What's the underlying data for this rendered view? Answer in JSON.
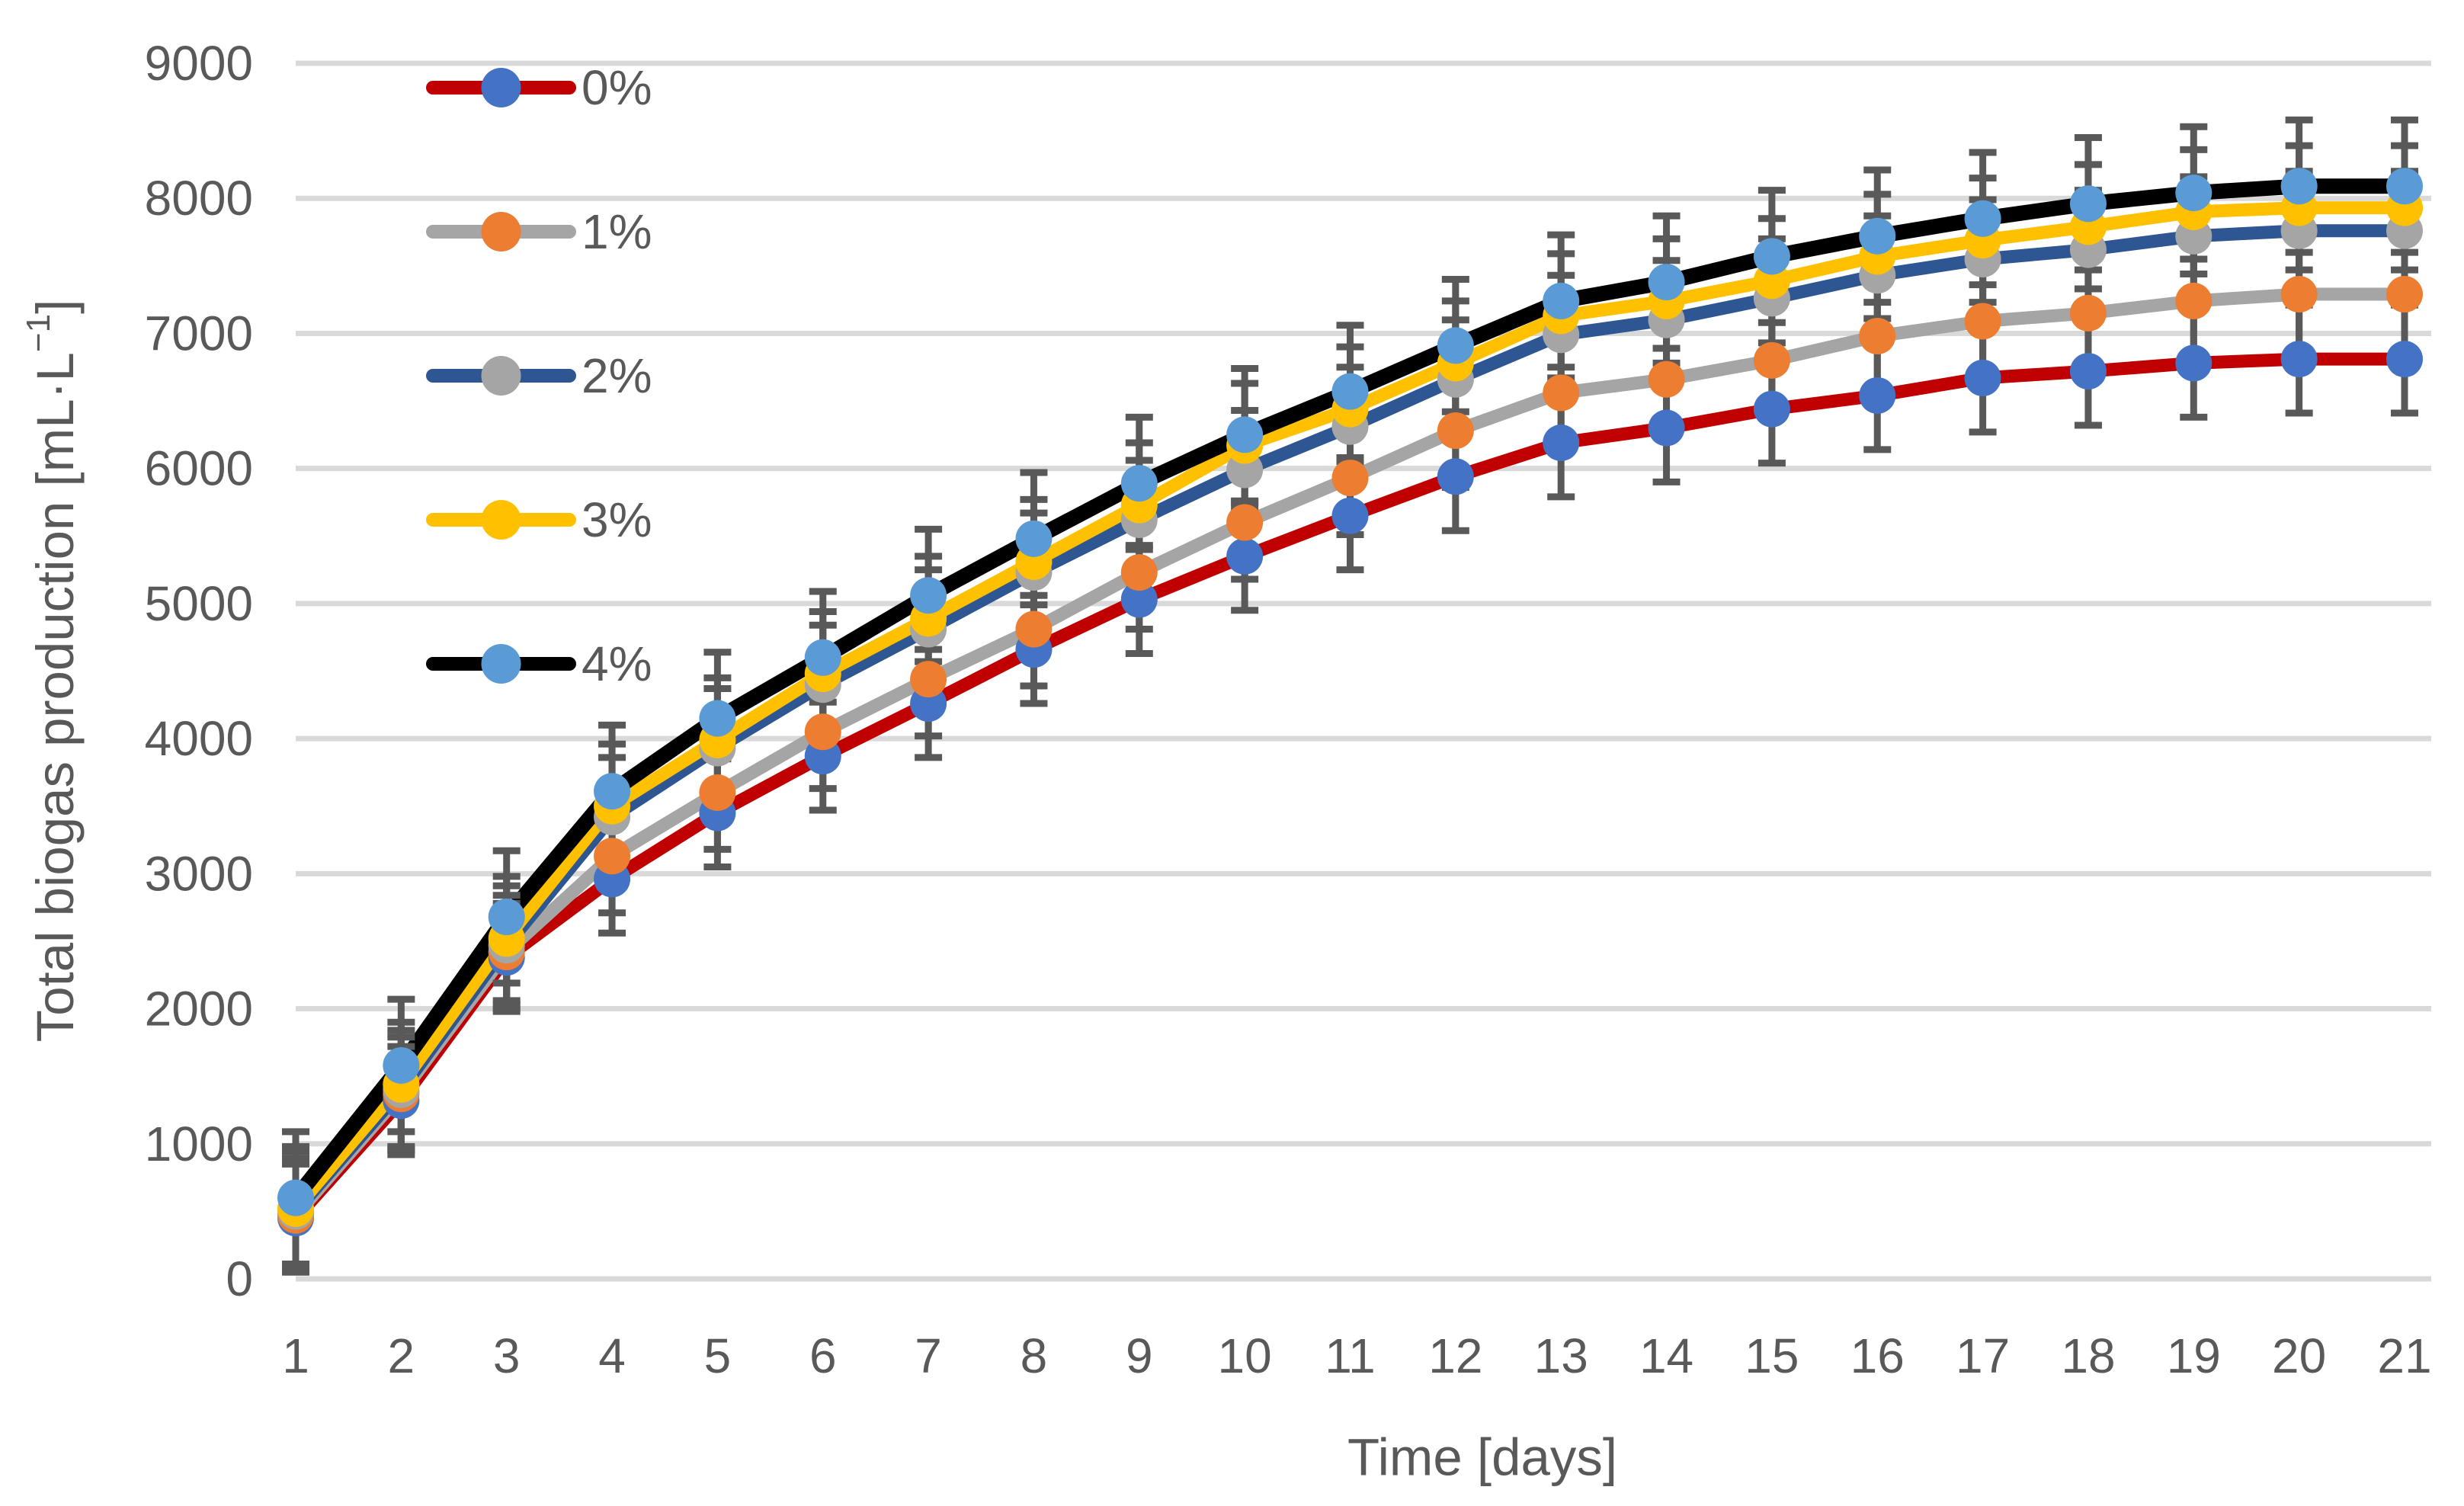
{
  "chart_data": {
    "type": "line",
    "title": "",
    "xlabel": "Time [days]",
    "ylabel": "Total biogas production [mL·L⁻¹]",
    "ylabel_parts": {
      "base": "Total biogas production [mL·L",
      "sup": "−1",
      "end": "]"
    },
    "x": [
      1,
      2,
      3,
      4,
      5,
      6,
      7,
      8,
      9,
      10,
      11,
      12,
      13,
      14,
      15,
      16,
      17,
      18,
      19,
      20,
      21
    ],
    "xlim": [
      1,
      21
    ],
    "ylim": [
      0,
      9000
    ],
    "ytick_step": 1000,
    "yticks": [
      0,
      1000,
      2000,
      3000,
      4000,
      5000,
      6000,
      7000,
      8000,
      9000
    ],
    "grid": "horizontal",
    "legend_position": "inside-top-left",
    "background": "#FFFFFF",
    "grid_color": "#D9D9D9",
    "text_color": "#595959",
    "error_bar_color": "#595959",
    "series": [
      {
        "name": "0%",
        "line_color": "#C00000",
        "marker_color": "#4472C4",
        "error": 400,
        "values": [
          450,
          1320,
          2380,
          2960,
          3450,
          3870,
          4260,
          4660,
          5030,
          5350,
          5650,
          5940,
          6190,
          6300,
          6440,
          6540,
          6670,
          6720,
          6780,
          6810,
          6810
        ]
      },
      {
        "name": "1%",
        "line_color": "#A5A5A5",
        "marker_color": "#ED7D31",
        "error": 420,
        "values": [
          470,
          1370,
          2420,
          3130,
          3600,
          4050,
          4440,
          4810,
          5230,
          5600,
          5930,
          6280,
          6560,
          6660,
          6800,
          6980,
          7090,
          7150,
          7240,
          7290,
          7290
        ]
      },
      {
        "name": "2%",
        "line_color": "#2E5693",
        "marker_color": "#A5A5A5",
        "error": 440,
        "values": [
          500,
          1400,
          2470,
          3420,
          3930,
          4400,
          4810,
          5230,
          5620,
          5990,
          6310,
          6660,
          6990,
          7100,
          7260,
          7430,
          7550,
          7620,
          7720,
          7760,
          7760
        ]
      },
      {
        "name": "3%",
        "line_color": "#FFC000",
        "marker_color": "#FFC000",
        "error": 460,
        "values": [
          520,
          1440,
          2520,
          3500,
          3990,
          4480,
          4890,
          5310,
          5730,
          6170,
          6440,
          6780,
          7130,
          7240,
          7390,
          7570,
          7690,
          7790,
          7900,
          7930,
          7930
        ]
      },
      {
        "name": "4%",
        "line_color": "#000000",
        "marker_color": "#5B9BD5",
        "error": 490,
        "values": [
          600,
          1580,
          2680,
          3610,
          4150,
          4600,
          5060,
          5480,
          5890,
          6250,
          6570,
          6910,
          7240,
          7380,
          7570,
          7720,
          7850,
          7960,
          8040,
          8090,
          8090
        ]
      }
    ]
  }
}
